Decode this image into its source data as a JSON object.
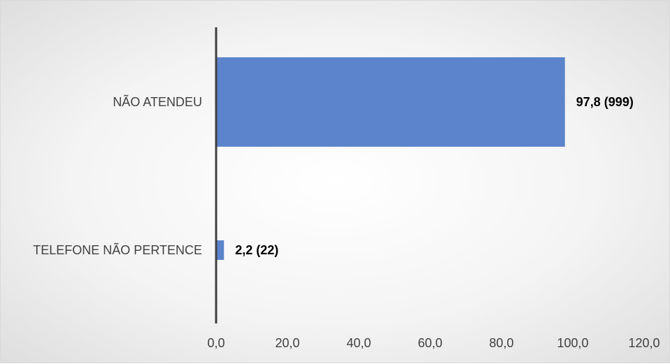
{
  "chart_data": {
    "type": "bar",
    "orientation": "horizontal",
    "categories": [
      "NÃO ATENDEU",
      "TELEFONE NÃO PERTENCE"
    ],
    "values": [
      97.8,
      2.2
    ],
    "data_labels": [
      "97,8 (999)",
      "2,2 (22)"
    ],
    "xlim": [
      0,
      120
    ],
    "xticks": [
      "0,0",
      "20,0",
      "40,0",
      "60,0",
      "80,0",
      "100,0",
      "120,0"
    ],
    "bar_color": "#5b84cc",
    "axis_color": "#404040",
    "grid": false,
    "legend": "none"
  }
}
